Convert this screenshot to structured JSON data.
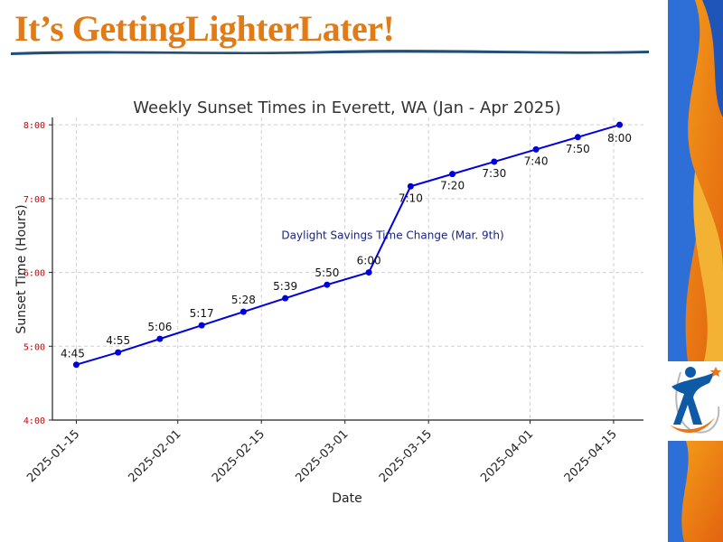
{
  "slide": {
    "title": "It’s GettingLighterLater!",
    "accent_color": "#e07b16",
    "underline_color": "#1f4e79"
  },
  "chart_data": {
    "type": "line",
    "title": "Weekly Sunset Times in Everett, WA (Jan - Apr 2025)",
    "xlabel": "Date",
    "ylabel": "Sunset Time (Hours)",
    "x": [
      "2025-01-15",
      "2025-01-22",
      "2025-01-29",
      "2025-02-05",
      "2025-02-12",
      "2025-02-19",
      "2025-02-26",
      "2025-03-05",
      "2025-03-12",
      "2025-03-19",
      "2025-03-26",
      "2025-04-02",
      "2025-04-09",
      "2025-04-16"
    ],
    "series": [
      {
        "values": [
          4.75,
          4.9167,
          5.1,
          5.2833,
          5.4667,
          5.65,
          5.8333,
          6.0,
          7.1667,
          7.3333,
          7.5,
          7.6667,
          7.8333,
          8.0
        ],
        "point_labels": [
          "4:45",
          "4:55",
          "5:06",
          "5:17",
          "5:28",
          "5:39",
          "5:50",
          "6:00",
          "7:10",
          "7:20",
          "7:30",
          "7:40",
          "7:50",
          "8:00"
        ],
        "color": "#0000dd"
      }
    ],
    "xlim": [
      "2025-01-11",
      "2025-04-20"
    ],
    "ylim": [
      4.0,
      8.1
    ],
    "xticks": [
      "2025-01-15",
      "2025-02-01",
      "2025-02-15",
      "2025-03-01",
      "2025-03-15",
      "2025-04-01",
      "2025-04-15"
    ],
    "yticks": [
      4,
      5,
      6,
      7,
      8
    ],
    "ytick_labels": [
      "4:00",
      "5:00",
      "6:00",
      "7:00",
      "8:00"
    ],
    "ytick_color": "#cc0000",
    "grid": true,
    "annotation": {
      "text": "Daylight Savings  Time Change (Mar. 9th)",
      "x": "2025-03-09",
      "y": 6.5,
      "color": "#1a237e"
    }
  }
}
